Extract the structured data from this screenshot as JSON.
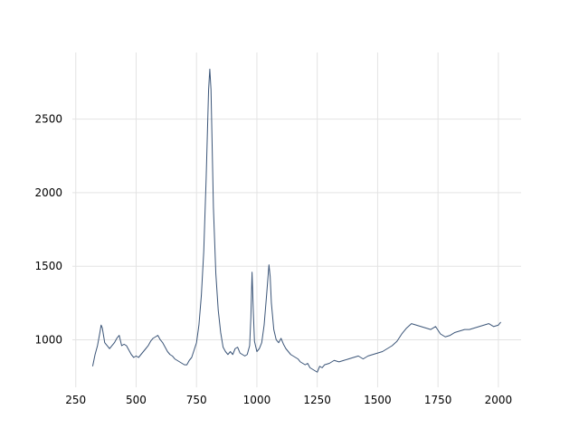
{
  "chart_data": {
    "type": "line",
    "x": [
      320,
      330,
      340,
      350,
      355,
      360,
      370,
      380,
      390,
      400,
      410,
      420,
      430,
      440,
      450,
      460,
      470,
      480,
      490,
      500,
      510,
      520,
      530,
      540,
      550,
      560,
      570,
      580,
      590,
      600,
      610,
      620,
      630,
      640,
      650,
      660,
      670,
      680,
      690,
      700,
      710,
      720,
      730,
      740,
      750,
      760,
      770,
      780,
      790,
      800,
      805,
      810,
      815,
      820,
      830,
      840,
      850,
      860,
      870,
      880,
      890,
      900,
      910,
      920,
      930,
      940,
      950,
      960,
      970,
      975,
      980,
      985,
      990,
      1000,
      1010,
      1020,
      1030,
      1040,
      1050,
      1055,
      1060,
      1070,
      1080,
      1090,
      1100,
      1110,
      1120,
      1130,
      1140,
      1150,
      1160,
      1170,
      1180,
      1190,
      1200,
      1210,
      1220,
      1230,
      1240,
      1250,
      1260,
      1270,
      1280,
      1300,
      1320,
      1340,
      1360,
      1380,
      1400,
      1420,
      1440,
      1460,
      1480,
      1500,
      1520,
      1540,
      1560,
      1580,
      1600,
      1620,
      1640,
      1660,
      1680,
      1700,
      1720,
      1740,
      1760,
      1780,
      1800,
      1820,
      1840,
      1860,
      1880,
      1900,
      1920,
      1940,
      1960,
      1980,
      2000,
      2010
    ],
    "series": [
      {
        "color": "#3b5578",
        "values": [
          820,
          900,
          960,
          1050,
          1100,
          1080,
          980,
          960,
          940,
          960,
          980,
          1010,
          1030,
          960,
          970,
          960,
          930,
          900,
          880,
          890,
          880,
          900,
          920,
          940,
          960,
          990,
          1010,
          1020,
          1030,
          1000,
          980,
          950,
          920,
          900,
          890,
          870,
          860,
          850,
          840,
          830,
          830,
          860,
          880,
          930,
          980,
          1100,
          1300,
          1600,
          2100,
          2700,
          2840,
          2700,
          2300,
          1900,
          1450,
          1200,
          1050,
          950,
          920,
          900,
          920,
          900,
          940,
          950,
          910,
          900,
          890,
          900,
          960,
          1150,
          1460,
          1200,
          990,
          920,
          940,
          980,
          1100,
          1300,
          1510,
          1430,
          1250,
          1070,
          1000,
          980,
          1010,
          970,
          940,
          920,
          900,
          890,
          880,
          870,
          850,
          840,
          830,
          840,
          810,
          800,
          790,
          780,
          820,
          810,
          830,
          840,
          860,
          850,
          860,
          870,
          880,
          890,
          870,
          890,
          900,
          910,
          920,
          940,
          960,
          990,
          1040,
          1080,
          1110,
          1100,
          1090,
          1080,
          1070,
          1090,
          1040,
          1020,
          1030,
          1050,
          1060,
          1070,
          1070,
          1080,
          1090,
          1100,
          1110,
          1090,
          1100,
          1120
        ]
      }
    ],
    "xlim": [
      236,
      2094
    ],
    "ylim": [
      677,
      2953
    ],
    "xticks": [
      250,
      500,
      750,
      1000,
      1250,
      1500,
      1750,
      2000
    ],
    "yticks": [
      1000,
      1500,
      2000,
      2500
    ],
    "grid": true
  }
}
